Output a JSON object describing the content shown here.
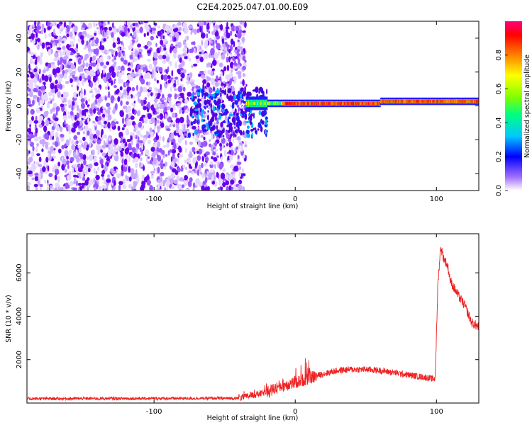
{
  "title": "C2E4.2025.047.01.00.E09",
  "chart_data": [
    {
      "type": "heatmap",
      "xlabel": "Height of straight line (km)",
      "ylabel": "Frequency (Hz)",
      "xlim": [
        -190,
        130
      ],
      "ylim": [
        -50,
        50
      ],
      "xticks": [
        -100,
        0,
        100
      ],
      "yticks": [
        40,
        20,
        0,
        -20,
        -40
      ],
      "xtick_labels": [
        "-100",
        "0",
        "100"
      ],
      "ytick_labels": [
        "40",
        "20",
        "0",
        "-20",
        "-40"
      ],
      "colorbar": {
        "label": "Normalized spectral amplitude",
        "range": [
          0,
          1
        ],
        "ticks": [
          0.0,
          0.2,
          0.4,
          0.6,
          0.8
        ],
        "tick_labels": [
          "0.0",
          "0.2",
          "0.4",
          "0.6",
          "0.8"
        ],
        "colormap": [
          "#ffffff",
          "#6a00ff",
          "#0000ff",
          "#00c8ff",
          "#00ff80",
          "#80ff00",
          "#ffff00",
          "#ff8000",
          "#ff0000",
          "#ff0080"
        ]
      },
      "noise_region": {
        "x_end": -35,
        "level": [
          0.02,
          0.2
        ]
      },
      "carrier_band": {
        "x_start": -35,
        "x_end": 130,
        "center_freq": 1.5,
        "amplitude": 0.85
      }
    },
    {
      "type": "line",
      "xlabel": "Height of straight line (km)",
      "ylabel": "SNR (10 * v/v)",
      "xlim": [
        -190,
        130
      ],
      "ylim": [
        0,
        7800
      ],
      "xticks": [
        -100,
        0,
        100
      ],
      "yticks": [
        2000,
        4000,
        6000
      ],
      "xtick_labels": [
        "-100",
        "0",
        "100"
      ],
      "ytick_labels": [
        "2000",
        "4000",
        "6000"
      ],
      "color": "#ee2222",
      "profile": [
        [
          -190,
          200
        ],
        [
          -40,
          220
        ],
        [
          -20,
          500
        ],
        [
          -10,
          800
        ],
        [
          0,
          950
        ],
        [
          10,
          1150
        ],
        [
          20,
          1350
        ],
        [
          30,
          1500
        ],
        [
          40,
          1550
        ],
        [
          50,
          1550
        ],
        [
          60,
          1500
        ],
        [
          70,
          1400
        ],
        [
          80,
          1300
        ],
        [
          90,
          1200
        ],
        [
          99,
          1100
        ],
        [
          100,
          3000
        ],
        [
          101,
          5500
        ],
        [
          103,
          7200
        ],
        [
          105,
          6700
        ],
        [
          108,
          6300
        ],
        [
          110,
          5600
        ],
        [
          115,
          5000
        ],
        [
          120,
          4500
        ],
        [
          125,
          3700
        ],
        [
          130,
          3500
        ]
      ]
    }
  ]
}
